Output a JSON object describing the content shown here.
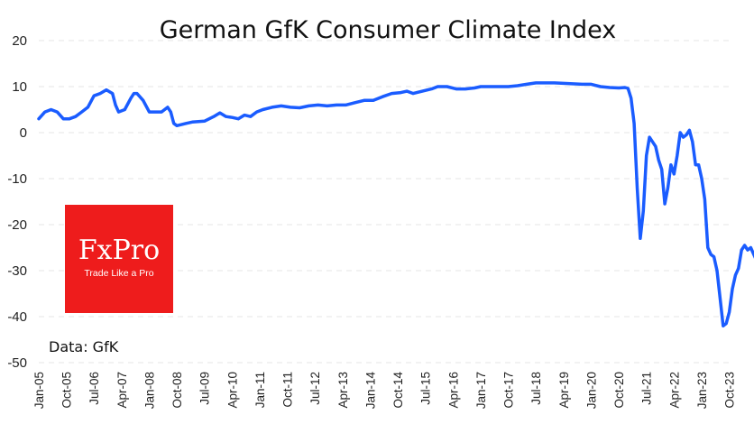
{
  "chart_data": {
    "type": "line",
    "title": "German GfK Consumer Climate Index",
    "xlabel": "",
    "ylabel": "",
    "ylim": [
      -50,
      20
    ],
    "yticks": [
      20,
      10,
      0,
      -10,
      -20,
      -30,
      -40,
      -50
    ],
    "xticks": [
      "Jan-05",
      "Oct-05",
      "Jul-06",
      "Apr-07",
      "Jan-08",
      "Oct-08",
      "Jul-09",
      "Apr-10",
      "Jan-11",
      "Oct-11",
      "Jul-12",
      "Apr-13",
      "Jan-14",
      "Oct-14",
      "Jul-15",
      "Apr-16",
      "Jan-17",
      "Oct-17",
      "Jul-18",
      "Apr-19",
      "Jan-20",
      "Oct-20",
      "Jul-21",
      "Apr-22",
      "Jan-23",
      "Oct-23"
    ],
    "grid": true,
    "color": "#1a5cff",
    "series": [
      {
        "name": "GfK Consumer Climate",
        "points": [
          [
            0,
            3
          ],
          [
            2,
            4.5
          ],
          [
            4,
            5
          ],
          [
            6,
            4.5
          ],
          [
            8,
            3
          ],
          [
            10,
            3
          ],
          [
            12,
            3.5
          ],
          [
            14,
            4.5
          ],
          [
            16,
            5.5
          ],
          [
            18,
            8
          ],
          [
            20,
            8.5
          ],
          [
            22,
            9.3
          ],
          [
            24,
            8.5
          ],
          [
            25,
            6
          ],
          [
            26,
            4.5
          ],
          [
            28,
            5
          ],
          [
            30,
            7.5
          ],
          [
            31,
            8.5
          ],
          [
            32,
            8.5
          ],
          [
            34,
            7
          ],
          [
            36,
            4.5
          ],
          [
            40,
            4.5
          ],
          [
            42,
            5.5
          ],
          [
            43,
            4.5
          ],
          [
            44,
            2
          ],
          [
            45,
            1.5
          ],
          [
            48,
            2
          ],
          [
            50,
            2.3
          ],
          [
            54,
            2.5
          ],
          [
            57,
            3.5
          ],
          [
            59,
            4.3
          ],
          [
            61,
            3.5
          ],
          [
            63,
            3.3
          ],
          [
            65,
            3
          ],
          [
            67,
            3.8
          ],
          [
            69,
            3.5
          ],
          [
            71,
            4.5
          ],
          [
            73,
            5
          ],
          [
            76,
            5.5
          ],
          [
            79,
            5.8
          ],
          [
            82,
            5.5
          ],
          [
            85,
            5.4
          ],
          [
            88,
            5.8
          ],
          [
            91,
            6
          ],
          [
            94,
            5.8
          ],
          [
            97,
            6
          ],
          [
            100,
            6
          ],
          [
            103,
            6.5
          ],
          [
            106,
            7
          ],
          [
            109,
            7
          ],
          [
            112,
            7.8
          ],
          [
            115,
            8.5
          ],
          [
            118,
            8.7
          ],
          [
            120,
            9
          ],
          [
            122,
            8.5
          ],
          [
            125,
            9
          ],
          [
            128,
            9.5
          ],
          [
            130,
            10
          ],
          [
            133,
            10
          ],
          [
            136,
            9.5
          ],
          [
            139,
            9.5
          ],
          [
            142,
            9.7
          ],
          [
            144,
            10
          ],
          [
            147,
            10
          ],
          [
            150,
            10
          ],
          [
            153,
            10
          ],
          [
            156,
            10.2
          ],
          [
            159,
            10.5
          ],
          [
            162,
            10.8
          ],
          [
            165,
            10.8
          ],
          [
            168,
            10.8
          ],
          [
            171,
            10.7
          ],
          [
            174,
            10.6
          ],
          [
            177,
            10.5
          ],
          [
            180,
            10.5
          ],
          [
            183,
            10
          ],
          [
            186,
            9.8
          ],
          [
            189,
            9.7
          ],
          [
            191,
            9.8
          ],
          [
            192,
            9.6
          ],
          [
            193,
            7.5
          ],
          [
            194,
            2
          ],
          [
            195,
            -12
          ],
          [
            196,
            -23
          ],
          [
            197,
            -17
          ],
          [
            198,
            -5
          ],
          [
            199,
            -1
          ],
          [
            200,
            -2
          ],
          [
            201,
            -3
          ],
          [
            202,
            -6
          ],
          [
            203,
            -8
          ],
          [
            204,
            -15.5
          ],
          [
            205,
            -12
          ],
          [
            206,
            -7
          ],
          [
            207,
            -9
          ],
          [
            208,
            -5
          ],
          [
            209,
            0
          ],
          [
            210,
            -1
          ],
          [
            211,
            -0.5
          ],
          [
            212,
            0.5
          ],
          [
            213,
            -2
          ],
          [
            214,
            -7
          ],
          [
            215,
            -7
          ],
          [
            216,
            -10
          ],
          [
            217,
            -14.5
          ],
          [
            218,
            -25
          ],
          [
            219,
            -26.5
          ],
          [
            220,
            -27
          ],
          [
            221,
            -30
          ],
          [
            222,
            -36
          ],
          [
            223,
            -42
          ],
          [
            224,
            -41.5
          ],
          [
            225,
            -39
          ],
          [
            226,
            -34
          ],
          [
            227,
            -31
          ],
          [
            228,
            -29.5
          ],
          [
            229,
            -25.5
          ],
          [
            230,
            -24.5
          ],
          [
            231,
            -25.5
          ],
          [
            232,
            -25
          ],
          [
            233,
            -26.5
          ],
          [
            234,
            -28
          ],
          [
            235,
            -28
          ]
        ]
      }
    ]
  },
  "source_label": "Data: GfK",
  "logo": {
    "text": "FxPro",
    "tagline": "Trade Like a Pro",
    "color": "#ee1c1c"
  }
}
